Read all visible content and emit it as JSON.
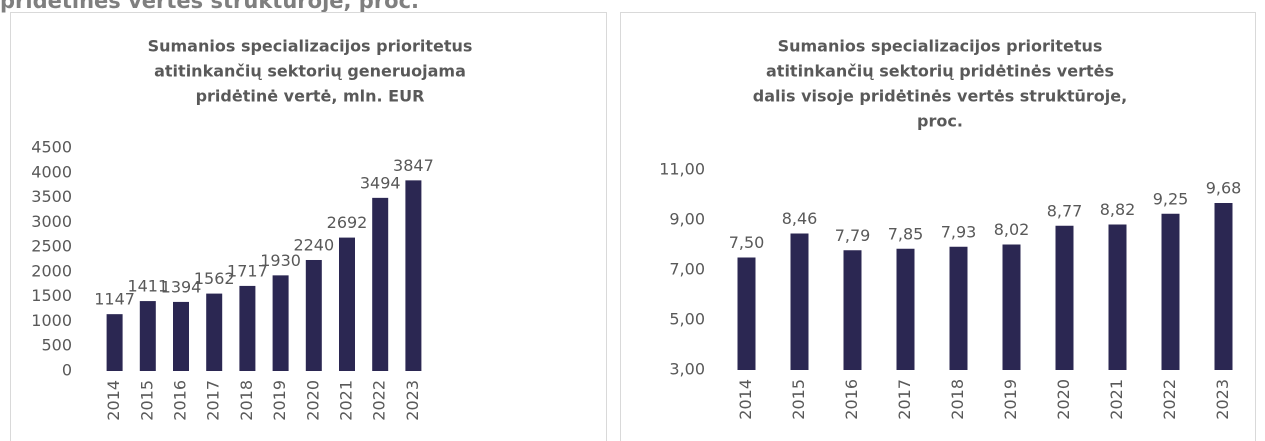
{
  "heading": "pridėtinės vertės struktūroje, proc.",
  "chart_data": [
    {
      "type": "bar",
      "title": [
        "Sumanios specializacijos prioritetus",
        "atitinkančių sektorių generuojama",
        "pridėtinė vertė, mln. EUR"
      ],
      "categories": [
        "2014",
        "2015",
        "2016",
        "2017",
        "2018",
        "2019",
        "2020",
        "2021",
        "2022",
        "2023"
      ],
      "values": [
        1147,
        1411,
        1394,
        1562,
        1717,
        1930,
        2240,
        2692,
        3494,
        3847
      ],
      "color": "#2b2752",
      "ylim": [
        0,
        4500
      ],
      "yticks": [
        0,
        500,
        1000,
        1500,
        2000,
        2500,
        3000,
        3500,
        4000,
        4500
      ]
    },
    {
      "type": "bar",
      "title": [
        "Sumanios specializacijos prioritetus",
        "atitinkančių sektorių pridėtinės vertės",
        "dalis visoje pridėtinės vertės struktūroje,",
        "proc."
      ],
      "categories": [
        "2014",
        "2015",
        "2016",
        "2017",
        "2018",
        "2019",
        "2020",
        "2021",
        "2022",
        "2023"
      ],
      "values": [
        7.5,
        8.46,
        7.79,
        7.85,
        7.93,
        8.02,
        8.77,
        8.82,
        9.25,
        9.68
      ],
      "value_labels": [
        "7,50",
        "8,46",
        "7,79",
        "7,85",
        "7,93",
        "8,02",
        "8,77",
        "8,82",
        "9,25",
        "9,68"
      ],
      "color": "#2b2752",
      "ylim": [
        3,
        11
      ],
      "yticks": [
        {
          "value": 3,
          "label": "3,00"
        },
        {
          "value": 5,
          "label": "5,00"
        },
        {
          "value": 7,
          "label": "7,00"
        },
        {
          "value": 9,
          "label": "9,00"
        },
        {
          "value": 11,
          "label": "11,00"
        }
      ]
    }
  ]
}
